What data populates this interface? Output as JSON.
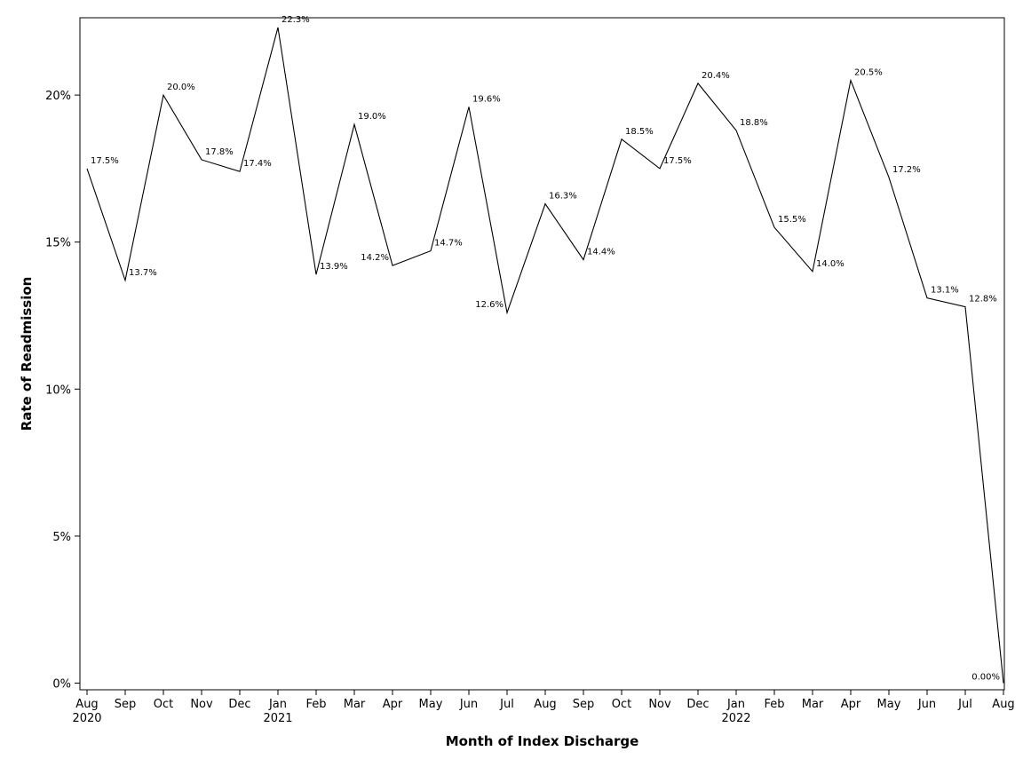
{
  "chart_data": {
    "type": "line",
    "xlabel": "Month of Index Discharge",
    "ylabel": "Rate of Readmission",
    "ylim": [
      0,
      22.6
    ],
    "yticks": [
      "0%",
      "5%",
      "10%",
      "15%",
      "20%"
    ],
    "ytick_values": [
      0,
      5,
      10,
      15,
      20
    ],
    "grid": false,
    "legend": "none",
    "line_color": "#000000",
    "categories": [
      "Aug",
      "Sep",
      "Oct",
      "Nov",
      "Dec",
      "Jan",
      "Feb",
      "Mar",
      "Apr",
      "May",
      "Jun",
      "Jul",
      "Aug",
      "Sep",
      "Oct",
      "Nov",
      "Dec",
      "Jan",
      "Feb",
      "Mar",
      "Apr",
      "May",
      "Jun",
      "Jul",
      "Aug"
    ],
    "year_labels": [
      {
        "index": 0,
        "label": "2020"
      },
      {
        "index": 5,
        "label": "2021"
      },
      {
        "index": 17,
        "label": "2022"
      }
    ],
    "values": [
      17.5,
      13.7,
      20.0,
      17.8,
      17.4,
      22.3,
      13.9,
      19.0,
      14.2,
      14.7,
      19.6,
      12.6,
      16.3,
      14.4,
      18.5,
      17.5,
      20.4,
      18.8,
      15.5,
      14.0,
      20.5,
      17.2,
      13.1,
      12.8,
      0.0
    ],
    "value_labels": [
      "17.5%",
      "13.7%",
      "20.0%",
      "17.8%",
      "17.4%",
      "22.3%",
      "13.9%",
      "19.0%",
      "14.2%",
      "14.7%",
      "19.6%",
      "12.6%",
      "16.3%",
      "14.4%",
      "18.5%",
      "17.5%",
      "20.4%",
      "18.8%",
      "15.5%",
      "14.0%",
      "20.5%",
      "17.2%",
      "13.1%",
      "12.8%",
      "0.00%"
    ]
  }
}
